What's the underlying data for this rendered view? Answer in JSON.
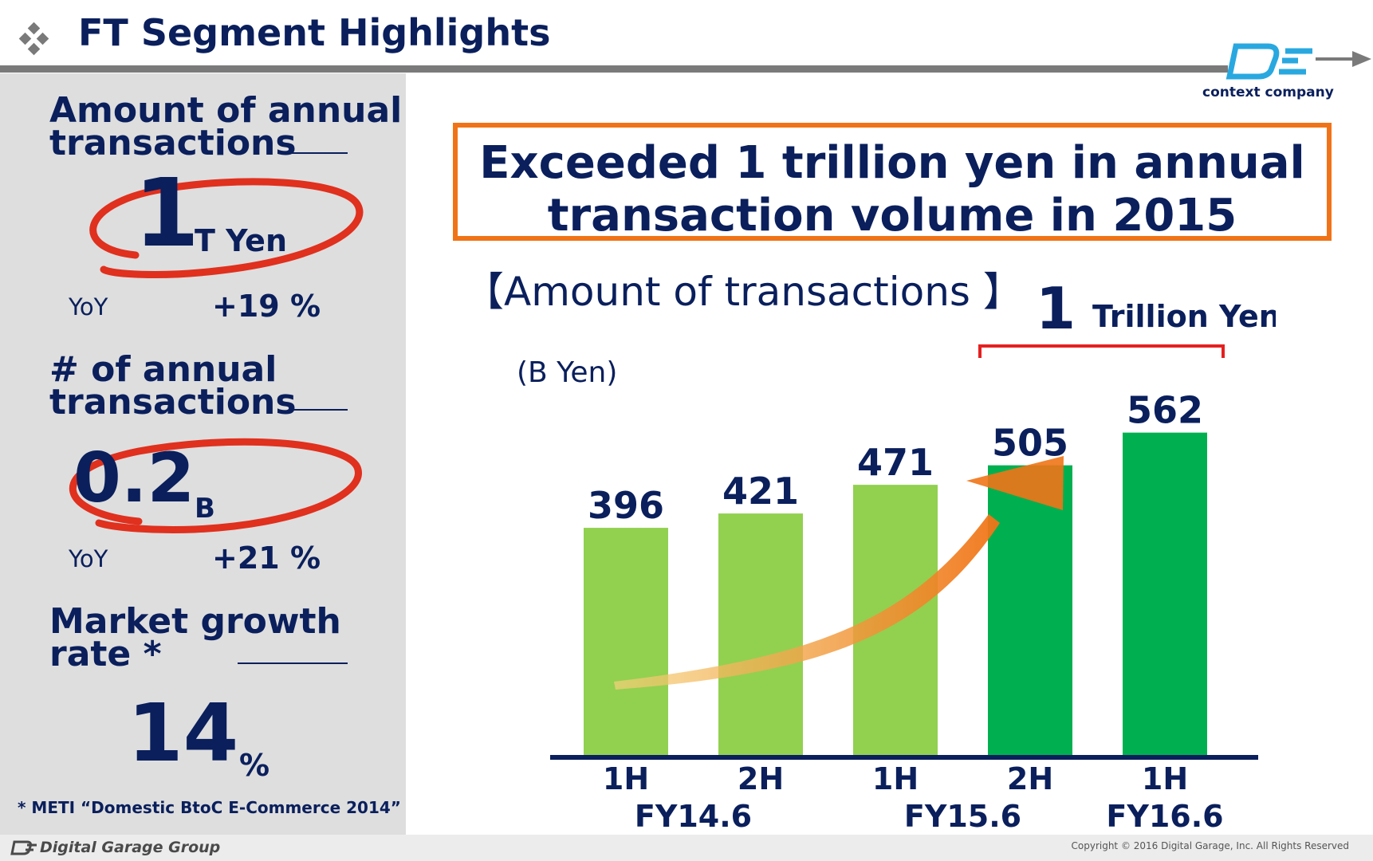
{
  "header": {
    "title": "FT Segment Highlights",
    "logo_text": "context company"
  },
  "left_panel": {
    "kpi1": {
      "heading_line1": "Amount of annual",
      "heading_line2": "transactions",
      "value": "1",
      "unit": "T Yen",
      "yoy_label": "YoY",
      "yoy_value": "+19 %"
    },
    "kpi2": {
      "heading_line1": "# of annual",
      "heading_line2": "transactions",
      "value": "0.2",
      "unit": "B",
      "yoy_label": "YoY",
      "yoy_value": "+21 %"
    },
    "kpi3": {
      "heading_line1": "Market growth",
      "heading_line2": "rate *",
      "value": "14",
      "unit": "%"
    },
    "footnote": "* METI “Domestic BtoC E-Commerce 2014”"
  },
  "headline": {
    "line1": "Exceeded 1 trillion yen in annual",
    "line2": "transaction volume in 2015"
  },
  "chart_section": {
    "label": "【Amount of transactions 】"
  },
  "chart_data": {
    "type": "bar",
    "title": "【Amount of transactions 】",
    "ylabel": "(B Yen)",
    "categories": [
      "1H",
      "2H",
      "1H",
      "2H",
      "1H"
    ],
    "fiscal_years": [
      "FY14.6",
      "FY15.6",
      "FY16.6"
    ],
    "values": [
      396,
      421,
      471,
      505,
      562
    ],
    "ylim": [
      0,
      600
    ],
    "bracket_value": "1",
    "bracket_unit": "Trillion Yen",
    "colors": {
      "light_bar": "#92d050",
      "dark_bar": "#00b050",
      "axis": "#0a1f5c",
      "bracket": "#e52020",
      "arrow": "#f07417"
    }
  },
  "colors": {
    "navy": "#0a1f5c",
    "accent_orange": "#f07417",
    "ellipse_red": "#e0301e",
    "panel_gray": "#dedede"
  },
  "footer": {
    "logo_text": "Digital Garage Group",
    "copyright": "Copyright © 2016 Digital Garage, Inc. All Rights Reserved"
  }
}
